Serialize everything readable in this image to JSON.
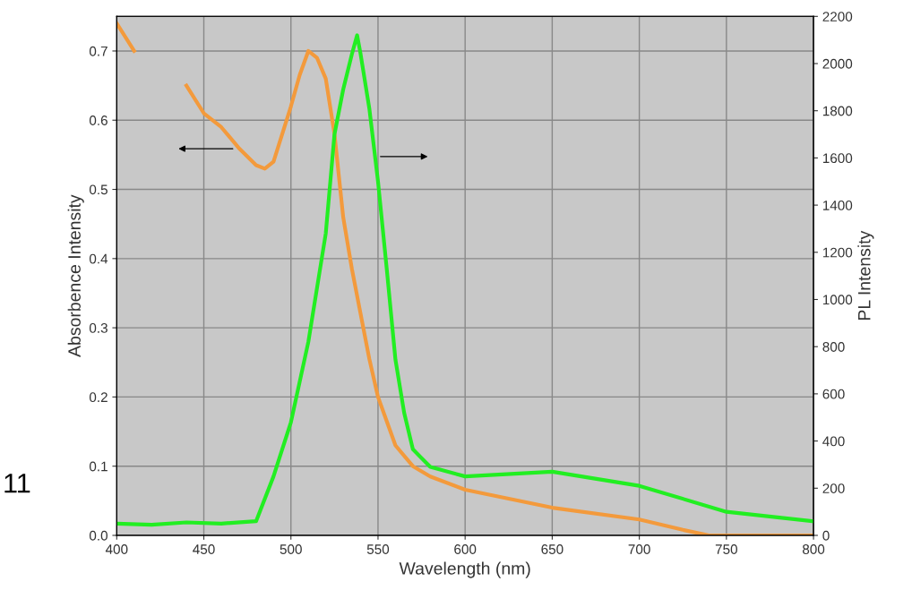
{
  "chart_data": {
    "type": "line",
    "xlabel": "Wavelength (nm)",
    "ylabel": "Absorbence Intensity",
    "y2label": "PL Intensity",
    "xlim": [
      400,
      800
    ],
    "xticks": [
      400,
      450,
      500,
      550,
      600,
      650,
      700,
      750,
      800
    ],
    "ylim": [
      0,
      0.75
    ],
    "yticks": [
      {
        "value": 0,
        "label": "0.0"
      },
      0.1,
      0.2,
      0.3,
      0.4,
      0.5,
      0.6,
      0.7
    ],
    "y2lim": [
      0,
      2200
    ],
    "y2ticks": [
      0,
      200,
      400,
      600,
      800,
      1000,
      1200,
      1400,
      1600,
      1800,
      2000,
      2200
    ],
    "grid": true,
    "annotations": [
      "11"
    ],
    "series": [
      {
        "color": "#f39a3c",
        "x": [
          400,
          410,
          430,
          440,
          450,
          460,
          470,
          480,
          485,
          490,
          500,
          505,
          510,
          515,
          520,
          525,
          530,
          535,
          540,
          545,
          550,
          555,
          560,
          570,
          580,
          600,
          650,
          700,
          725,
          740,
          800
        ],
        "values": [
          0.74,
          0.7,
          null,
          0.65,
          0.61,
          0.59,
          0.56,
          0.535,
          0.53,
          0.54,
          0.62,
          0.665,
          0.7,
          0.69,
          0.66,
          0.58,
          0.46,
          0.385,
          0.32,
          0.255,
          0.2,
          0.165,
          0.13,
          0.1,
          0.085,
          0.066,
          0.04,
          0.023,
          0.008,
          0,
          0
        ]
      },
      {
        "color": "#22ee22",
        "axis": "y2",
        "x": [
          400,
          420,
          440,
          460,
          480,
          490,
          500,
          510,
          520,
          525,
          530,
          535,
          538,
          540,
          545,
          550,
          555,
          560,
          565,
          570,
          580,
          600,
          650,
          700,
          750,
          800
        ],
        "values": [
          50,
          45,
          55,
          50,
          60,
          250,
          480,
          820,
          1280,
          1700,
          1890,
          2040,
          2120,
          2040,
          1810,
          1500,
          1130,
          745,
          520,
          365,
          290,
          250,
          270,
          210,
          100,
          60
        ]
      }
    ]
  }
}
